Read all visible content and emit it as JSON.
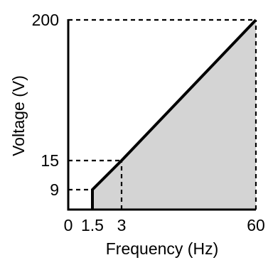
{
  "chart_data": {
    "type": "area",
    "title": "",
    "xlabel": "Frequency (Hz)",
    "ylabel": "Voltage (V)",
    "xlim": [
      0,
      60
    ],
    "ylim": [
      0,
      200
    ],
    "x_scale": "nonlinear",
    "y_scale": "nonlinear",
    "x_ticks": [
      0,
      1.5,
      3,
      60
    ],
    "y_ticks": [
      9,
      15,
      200
    ],
    "x_tick_labels": [
      "0",
      "1.5",
      "3",
      "60"
    ],
    "y_tick_labels": [
      "9",
      "15",
      "200"
    ],
    "grid": false,
    "series": [
      {
        "x": [
          1.5,
          1.5,
          3,
          60
        ],
        "y": [
          0,
          9,
          15,
          200
        ]
      }
    ],
    "reference_lines": [
      {
        "from": {
          "x": 0,
          "y": 200
        },
        "to": {
          "x": 60,
          "y": 200
        },
        "style": "dashed"
      },
      {
        "from": {
          "x": 60,
          "y": 0
        },
        "to": {
          "x": 60,
          "y": 200
        },
        "style": "dashed"
      },
      {
        "from": {
          "x": 0,
          "y": 15
        },
        "to": {
          "x": 3,
          "y": 15
        },
        "style": "dashed"
      },
      {
        "from": {
          "x": 3,
          "y": 0
        },
        "to": {
          "x": 3,
          "y": 15
        },
        "style": "dashed"
      },
      {
        "from": {
          "x": 0,
          "y": 9
        },
        "to": {
          "x": 1.5,
          "y": 9
        },
        "style": "dashed"
      }
    ],
    "colors": {
      "fill": "#d4d4d4",
      "line": "#000000"
    }
  }
}
